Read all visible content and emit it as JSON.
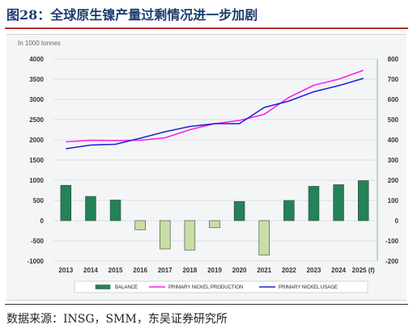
{
  "figure": {
    "title": "图28：全球原生镍产量过剩情况进一步加剧",
    "source": "数据来源：INSG，SMM，东吴证券研究所"
  },
  "colors": {
    "balance_fill": "#238257",
    "balance_fill_negative": "#cbdda6",
    "production_line": "#ff1fe3",
    "usage_line": "#1a23d8",
    "left_axis_text": "#1a2a6e",
    "right_axis_text": "#1e7f4f"
  },
  "chart_data": {
    "type": "bar+line",
    "unit_label": "In 1000 tonnes",
    "categories": [
      "2013",
      "2014",
      "2015",
      "2016",
      "2017",
      "2018",
      "2019",
      "2020",
      "2021",
      "2022",
      "2023",
      "2024",
      "2025 (f)"
    ],
    "left_axis": {
      "ylim": [
        -1000,
        4000
      ],
      "ticks": [
        "4000",
        "3500",
        "3000",
        "2500",
        "2000",
        "1500",
        "1000",
        "500",
        "0",
        "-500",
        "-1000"
      ]
    },
    "right_axis": {
      "ylim": [
        -200,
        800
      ],
      "ticks": [
        "800",
        "700",
        "600",
        "500",
        "400",
        "300",
        "200",
        "100",
        "0",
        "-100",
        "-200"
      ]
    },
    "series": [
      {
        "name": "BALANCE",
        "kind": "bar",
        "axis": "right",
        "values": [
          175,
          120,
          102,
          -45,
          -140,
          -145,
          -35,
          95,
          -170,
          100,
          170,
          178,
          198
        ]
      },
      {
        "name": "PRIMARY NICKEL PRODUCTION",
        "kind": "line",
        "axis": "left",
        "values": [
          1950,
          1990,
          1980,
          1990,
          2050,
          2250,
          2400,
          2480,
          2630,
          3050,
          3350,
          3500,
          3720
        ]
      },
      {
        "name": "PRIMARY NICKEL USAGE",
        "kind": "line",
        "axis": "left",
        "values": [
          1780,
          1870,
          1890,
          2040,
          2200,
          2330,
          2400,
          2400,
          2800,
          2960,
          3190,
          3340,
          3520
        ]
      }
    ],
    "grid": true,
    "legend_position": "bottom"
  }
}
